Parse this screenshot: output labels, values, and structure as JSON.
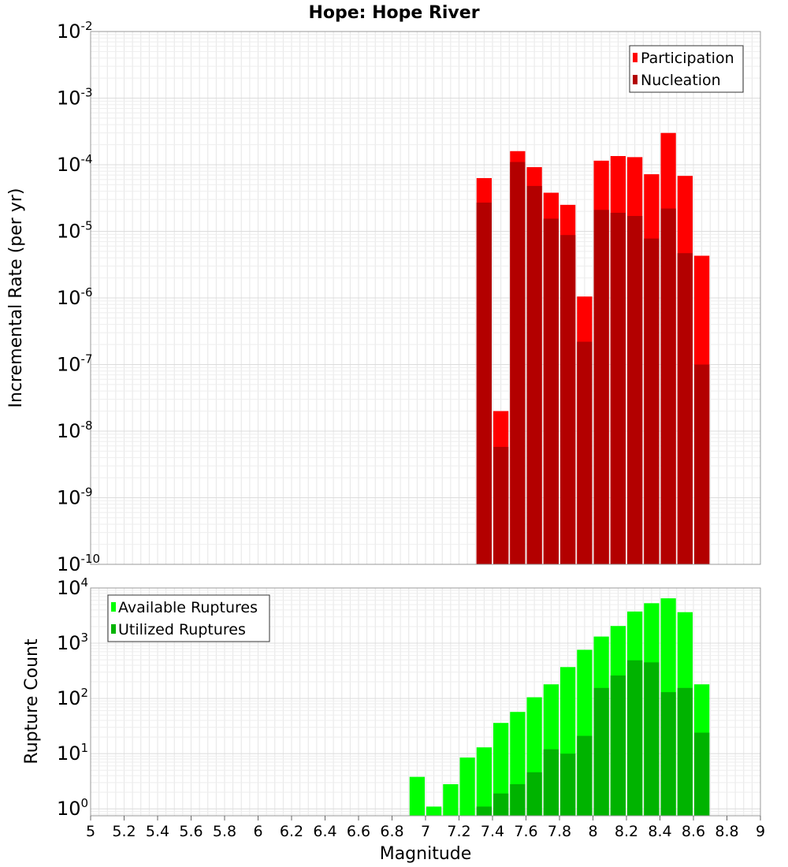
{
  "title": "Hope: Hope River",
  "chart_data": [
    {
      "type": "bar",
      "name": "rate-panel",
      "ylabel": "Incremental Rate (per yr)",
      "yscale": "log",
      "ylim": [
        1e-10,
        0.01
      ],
      "y_exponents": [
        -10,
        -9,
        -8,
        -7,
        -6,
        -5,
        -4,
        -3,
        -2
      ],
      "xlim": [
        5,
        9
      ],
      "bin_width": 0.1,
      "grid": true,
      "legend_position": "top-right",
      "series": [
        {
          "name": "Participation",
          "color": "#ff0000",
          "x": [
            7.35,
            7.45,
            7.55,
            7.65,
            7.75,
            7.85,
            7.95,
            8.05,
            8.15,
            8.25,
            8.35,
            8.45,
            8.55,
            8.65
          ],
          "values": [
            6.3e-05,
            2e-08,
            0.00016,
            9.2e-05,
            3.8e-05,
            2.5e-05,
            1.05e-06,
            0.000115,
            0.000135,
            0.00013,
            7.2e-05,
            0.0003,
            6.8e-05,
            4.3e-06
          ]
        },
        {
          "name": "Nucleation",
          "color": "#b30000",
          "x": [
            7.35,
            7.45,
            7.55,
            7.65,
            7.75,
            7.85,
            7.95,
            8.05,
            8.15,
            8.25,
            8.35,
            8.45,
            8.55,
            8.65
          ],
          "values": [
            2.7e-05,
            5.8e-09,
            0.00011,
            4.8e-05,
            1.55e-05,
            8.8e-06,
            2.2e-07,
            2.1e-05,
            1.9e-05,
            1.7e-05,
            7.8e-06,
            2.2e-05,
            4.7e-06,
            1e-07
          ]
        }
      ]
    },
    {
      "type": "bar",
      "name": "count-panel",
      "xlabel": "Magnitude",
      "ylabel": "Rupture Count",
      "yscale": "log",
      "ylim": [
        0.75,
        10000
      ],
      "y_exponents": [
        0,
        1,
        2,
        3,
        4
      ],
      "xlim": [
        5,
        9
      ],
      "x_ticks": [
        "5",
        "5.2",
        "5.4",
        "5.6",
        "5.8",
        "6",
        "6.2",
        "6.4",
        "6.6",
        "6.8",
        "7",
        "7.2",
        "7.4",
        "7.6",
        "7.8",
        "8",
        "8.2",
        "8.4",
        "8.6",
        "8.8",
        "9"
      ],
      "bin_width": 0.1,
      "grid": true,
      "legend_position": "top-left",
      "series": [
        {
          "name": "Available Ruptures",
          "color": "#00ff00",
          "x": [
            6.95,
            7.05,
            7.15,
            7.25,
            7.35,
            7.45,
            7.55,
            7.65,
            7.75,
            7.85,
            7.95,
            8.05,
            8.15,
            8.25,
            8.35,
            8.45,
            8.55,
            8.65
          ],
          "values": [
            3.8,
            1.1,
            2.8,
            8.5,
            13,
            36,
            57,
            105,
            180,
            370,
            760,
            1320,
            2050,
            3750,
            5300,
            6500,
            3650,
            180
          ]
        },
        {
          "name": "Utilized Ruptures",
          "color": "#00b300",
          "x": [
            7.35,
            7.45,
            7.55,
            7.65,
            7.75,
            7.85,
            7.95,
            8.05,
            8.15,
            8.25,
            8.35,
            8.45,
            8.55,
            8.65
          ],
          "values": [
            1.1,
            1.9,
            2.8,
            4.6,
            12,
            10,
            21,
            155,
            260,
            490,
            450,
            130,
            155,
            24
          ]
        }
      ]
    }
  ]
}
